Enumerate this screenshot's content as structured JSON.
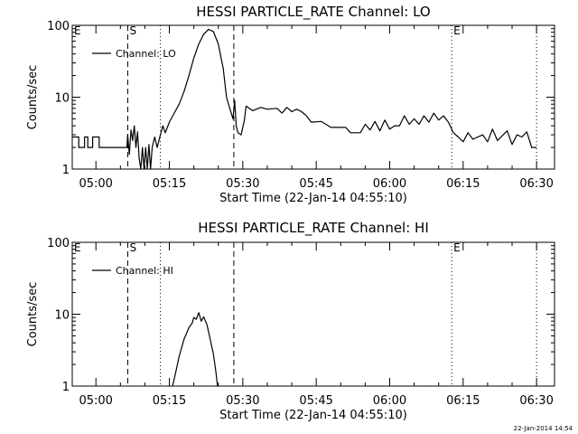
{
  "window": {
    "footer_date": "22-Jan-2014 14:54"
  },
  "chart_data": [
    {
      "type": "line",
      "title": "HESSI PARTICLE_RATE Channel: LO",
      "xlabel": "Start Time (22-Jan-14 04:55:10)",
      "ylabel": "Counts/sec",
      "y_scale": "log",
      "ylim": [
        1,
        100
      ],
      "xlim": [
        "04:55:10",
        "06:33:40"
      ],
      "x_ticks": [
        "05:00",
        "05:15",
        "05:30",
        "05:45",
        "06:00",
        "06:15",
        "06:30"
      ],
      "y_ticks": [
        "1",
        "10",
        "100"
      ],
      "legend": {
        "position": "top-left",
        "entries": [
          "Channel: LO"
        ]
      },
      "markers": [
        {
          "label": "E",
          "time": "04:55:10",
          "style": "none"
        },
        {
          "label": "S",
          "time": "05:06:30",
          "style": "dashed"
        },
        {
          "label": "",
          "time": "05:13:10",
          "style": "dotted"
        },
        {
          "label": "",
          "time": "05:28:10",
          "style": "dashed"
        },
        {
          "label": "E",
          "time": "06:12:40",
          "style": "dotted"
        },
        {
          "label": "",
          "time": "06:30:00",
          "style": "dotted"
        }
      ],
      "series": [
        {
          "name": "Channel: LO",
          "points": [
            [
              "04:55:10",
              2.8
            ],
            [
              "04:56:30",
              2.8
            ],
            [
              "04:56:30",
              2.0
            ],
            [
              "04:57:40",
              2.0
            ],
            [
              "04:57:40",
              2.8
            ],
            [
              "04:58:20",
              2.8
            ],
            [
              "04:58:20",
              2.0
            ],
            [
              "04:59:20",
              2.0
            ],
            [
              "04:59:20",
              2.8
            ],
            [
              "05:00:40",
              2.8
            ],
            [
              "05:00:40",
              2.0
            ],
            [
              "05:06:20",
              2.0
            ],
            [
              "05:06:30",
              3.0
            ],
            [
              "05:06:50",
              1.6
            ],
            [
              "05:07:10",
              3.5
            ],
            [
              "05:07:30",
              2.5
            ],
            [
              "05:07:50",
              4.0
            ],
            [
              "05:08:10",
              2.0
            ],
            [
              "05:08:30",
              3.3
            ],
            [
              "05:08:50",
              1.4
            ],
            [
              "05:09:10",
              1.0
            ],
            [
              "05:09:30",
              2.0
            ],
            [
              "05:09:50",
              1.0
            ],
            [
              "05:10:10",
              2.0
            ],
            [
              "05:10:30",
              1.0
            ],
            [
              "05:10:50",
              2.2
            ],
            [
              "05:11:10",
              1.0
            ],
            [
              "05:11:30",
              2.0
            ],
            [
              "05:12:00",
              2.8
            ],
            [
              "05:12:30",
              2.0
            ],
            [
              "05:13:10",
              3.0
            ],
            [
              "05:13:40",
              4.0
            ],
            [
              "05:14:10",
              3.2
            ],
            [
              "05:15:00",
              4.5
            ],
            [
              "05:16:00",
              6.0
            ],
            [
              "05:17:00",
              8.0
            ],
            [
              "05:18:00",
              12.0
            ],
            [
              "05:19:00",
              20.0
            ],
            [
              "05:20:00",
              35.0
            ],
            [
              "05:21:00",
              55.0
            ],
            [
              "05:22:00",
              75.0
            ],
            [
              "05:23:00",
              88.0
            ],
            [
              "05:24:00",
              82.0
            ],
            [
              "05:25:00",
              55.0
            ],
            [
              "05:26:00",
              25.0
            ],
            [
              "05:26:40",
              10.0
            ],
            [
              "05:27:20",
              7.0
            ],
            [
              "05:28:00",
              5.0
            ],
            [
              "05:28:20",
              9.0
            ],
            [
              "05:28:40",
              4.0
            ],
            [
              "05:29:00",
              3.2
            ],
            [
              "05:29:40",
              3.0
            ],
            [
              "05:30:20",
              4.8
            ],
            [
              "05:30:40",
              7.5
            ],
            [
              "05:32:00",
              6.5
            ],
            [
              "05:33:40",
              7.2
            ],
            [
              "05:35:00",
              6.8
            ],
            [
              "05:37:00",
              7.0
            ],
            [
              "05:38:00",
              6.0
            ],
            [
              "05:39:00",
              7.2
            ],
            [
              "05:40:00",
              6.3
            ],
            [
              "05:41:00",
              6.8
            ],
            [
              "05:42:00",
              6.3
            ],
            [
              "05:43:00",
              5.5
            ],
            [
              "05:44:00",
              4.5
            ],
            [
              "05:46:00",
              4.6
            ],
            [
              "05:48:00",
              3.8
            ],
            [
              "05:51:00",
              3.8
            ],
            [
              "05:52:00",
              3.2
            ],
            [
              "05:54:00",
              3.2
            ],
            [
              "05:55:00",
              4.2
            ],
            [
              "05:56:00",
              3.5
            ],
            [
              "05:57:00",
              4.6
            ],
            [
              "05:58:00",
              3.4
            ],
            [
              "05:59:00",
              4.8
            ],
            [
              "06:00:00",
              3.6
            ],
            [
              "06:01:00",
              4.0
            ],
            [
              "06:02:00",
              4.0
            ],
            [
              "06:03:00",
              5.5
            ],
            [
              "06:04:00",
              4.2
            ],
            [
              "06:05:00",
              5.0
            ],
            [
              "06:06:00",
              4.2
            ],
            [
              "06:07:00",
              5.5
            ],
            [
              "06:08:00",
              4.5
            ],
            [
              "06:09:00",
              6.0
            ],
            [
              "06:10:00",
              4.8
            ],
            [
              "06:11:00",
              5.5
            ],
            [
              "06:12:00",
              4.5
            ],
            [
              "06:13:00",
              3.2
            ],
            [
              "06:14:00",
              2.8
            ],
            [
              "06:15:00",
              2.4
            ],
            [
              "06:16:00",
              3.2
            ],
            [
              "06:17:00",
              2.6
            ],
            [
              "06:19:00",
              3.0
            ],
            [
              "06:20:00",
              2.4
            ],
            [
              "06:21:00",
              3.6
            ],
            [
              "06:22:00",
              2.5
            ],
            [
              "06:24:00",
              3.4
            ],
            [
              "06:25:00",
              2.2
            ],
            [
              "06:26:00",
              3.0
            ],
            [
              "06:27:00",
              2.8
            ],
            [
              "06:28:00",
              3.3
            ],
            [
              "06:29:00",
              2.0
            ],
            [
              "06:30:00",
              2.0
            ]
          ]
        }
      ]
    },
    {
      "type": "line",
      "title": "HESSI PARTICLE_RATE Channel: HI",
      "xlabel": "Start Time (22-Jan-14 04:55:10)",
      "ylabel": "Counts/sec",
      "y_scale": "log",
      "ylim": [
        1,
        100
      ],
      "xlim": [
        "04:55:10",
        "06:33:40"
      ],
      "x_ticks": [
        "05:00",
        "05:15",
        "05:30",
        "05:45",
        "06:00",
        "06:15",
        "06:30"
      ],
      "y_ticks": [
        "1",
        "10",
        "100"
      ],
      "legend": {
        "position": "top-left",
        "entries": [
          "Channel: HI"
        ]
      },
      "markers": [
        {
          "label": "E",
          "time": "04:55:10",
          "style": "none"
        },
        {
          "label": "S",
          "time": "05:06:30",
          "style": "dashed"
        },
        {
          "label": "",
          "time": "05:13:10",
          "style": "dotted"
        },
        {
          "label": "",
          "time": "05:28:10",
          "style": "dashed"
        },
        {
          "label": "E",
          "time": "06:12:40",
          "style": "dotted"
        },
        {
          "label": "",
          "time": "06:30:00",
          "style": "dotted"
        }
      ],
      "series": [
        {
          "name": "Channel: HI",
          "points": [
            [
              "05:15:40",
              1.0
            ],
            [
              "05:16:20",
              1.6
            ],
            [
              "05:17:00",
              2.6
            ],
            [
              "05:18:00",
              4.5
            ],
            [
              "05:19:00",
              6.5
            ],
            [
              "05:19:40",
              7.5
            ],
            [
              "05:20:00",
              9.0
            ],
            [
              "05:20:30",
              8.5
            ],
            [
              "05:21:00",
              10.5
            ],
            [
              "05:21:30",
              8.0
            ],
            [
              "05:22:00",
              9.2
            ],
            [
              "05:22:40",
              7.2
            ],
            [
              "05:23:20",
              4.5
            ],
            [
              "05:24:00",
              2.8
            ],
            [
              "05:24:30",
              1.6
            ],
            [
              "05:24:50",
              1.0
            ]
          ]
        }
      ]
    }
  ]
}
